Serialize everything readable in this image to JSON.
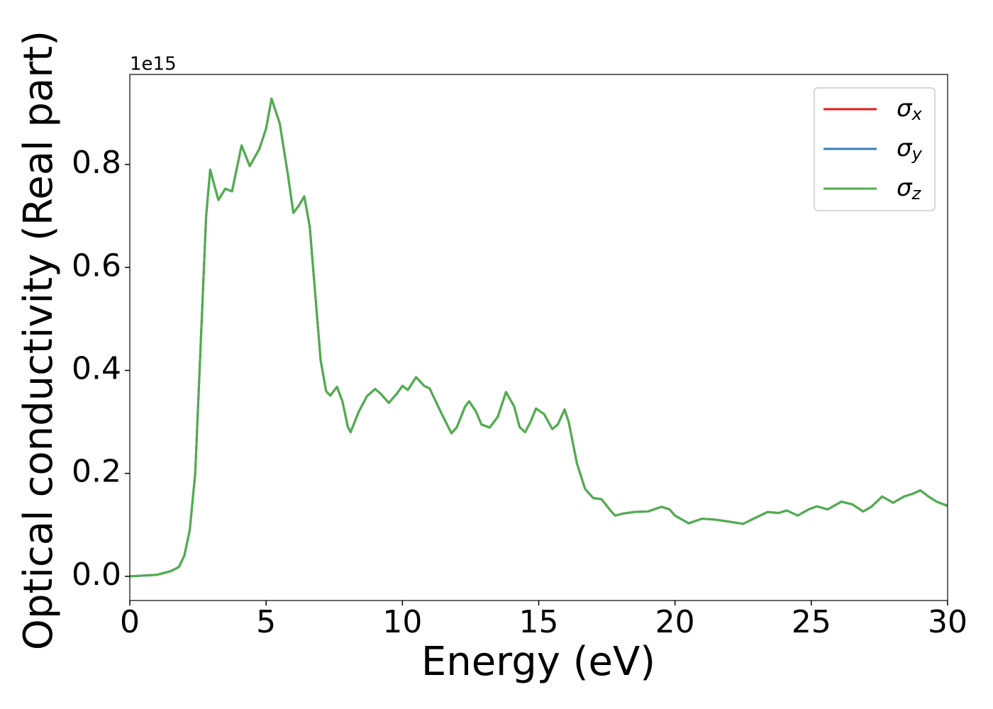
{
  "chart_data": {
    "type": "line",
    "x_label": "Energy (eV)",
    "y_label": "Optical conductivity (Real part)",
    "y_offset_text": "1e15",
    "x": [
      0,
      1,
      1.5,
      1.8,
      2.0,
      2.2,
      2.4,
      2.6,
      2.8,
      2.95,
      3.1,
      3.25,
      3.5,
      3.75,
      4.1,
      4.4,
      4.75,
      5.0,
      5.2,
      5.5,
      5.8,
      6.0,
      6.2,
      6.4,
      6.6,
      6.8,
      7.0,
      7.2,
      7.35,
      7.6,
      7.8,
      8.0,
      8.1,
      8.4,
      8.7,
      9.0,
      9.2,
      9.5,
      9.8,
      10.0,
      10.2,
      10.5,
      10.8,
      11.0,
      11.4,
      11.8,
      12.0,
      12.3,
      12.45,
      12.7,
      12.9,
      13.2,
      13.5,
      13.8,
      14.1,
      14.3,
      14.5,
      14.7,
      14.9,
      15.2,
      15.5,
      15.7,
      15.95,
      16.1,
      16.4,
      16.7,
      17.0,
      17.3,
      17.6,
      17.8,
      18.1,
      18.5,
      19.0,
      19.5,
      19.8,
      20.0,
      20.5,
      21.0,
      21.5,
      22.0,
      22.5,
      23.0,
      23.4,
      23.8,
      24.1,
      24.5,
      24.9,
      25.2,
      25.6,
      26.1,
      26.5,
      26.9,
      27.2,
      27.6,
      28.0,
      28.4,
      28.7,
      29.0,
      29.3,
      29.6,
      30.0
    ],
    "series": [
      {
        "name": "σx",
        "color": "#e41a1c",
        "values": [
          0,
          0.003,
          0.01,
          0.018,
          0.04,
          0.09,
          0.2,
          0.45,
          0.7,
          0.79,
          0.76,
          0.731,
          0.753,
          0.748,
          0.837,
          0.797,
          0.83,
          0.87,
          0.928,
          0.88,
          0.78,
          0.706,
          0.72,
          0.738,
          0.68,
          0.55,
          0.42,
          0.36,
          0.351,
          0.368,
          0.34,
          0.29,
          0.28,
          0.32,
          0.35,
          0.364,
          0.355,
          0.337,
          0.355,
          0.37,
          0.362,
          0.387,
          0.37,
          0.365,
          0.32,
          0.278,
          0.29,
          0.33,
          0.34,
          0.32,
          0.295,
          0.289,
          0.31,
          0.358,
          0.33,
          0.29,
          0.28,
          0.3,
          0.326,
          0.315,
          0.286,
          0.295,
          0.324,
          0.3,
          0.22,
          0.17,
          0.152,
          0.15,
          0.13,
          0.118,
          0.122,
          0.125,
          0.126,
          0.135,
          0.13,
          0.118,
          0.103,
          0.112,
          0.11,
          0.106,
          0.102,
          0.115,
          0.125,
          0.123,
          0.128,
          0.118,
          0.13,
          0.136,
          0.13,
          0.145,
          0.14,
          0.126,
          0.135,
          0.155,
          0.143,
          0.155,
          0.16,
          0.167,
          0.155,
          0.145,
          0.137
        ]
      },
      {
        "name": "σy",
        "color": "#377eb8",
        "values": [
          0,
          0.003,
          0.01,
          0.018,
          0.04,
          0.09,
          0.2,
          0.45,
          0.7,
          0.79,
          0.76,
          0.731,
          0.753,
          0.748,
          0.837,
          0.797,
          0.83,
          0.87,
          0.928,
          0.88,
          0.78,
          0.706,
          0.72,
          0.738,
          0.68,
          0.55,
          0.42,
          0.36,
          0.351,
          0.368,
          0.34,
          0.29,
          0.28,
          0.32,
          0.35,
          0.364,
          0.355,
          0.337,
          0.355,
          0.37,
          0.362,
          0.387,
          0.37,
          0.365,
          0.32,
          0.278,
          0.29,
          0.33,
          0.34,
          0.32,
          0.295,
          0.289,
          0.31,
          0.358,
          0.33,
          0.29,
          0.28,
          0.3,
          0.326,
          0.315,
          0.286,
          0.295,
          0.324,
          0.3,
          0.22,
          0.17,
          0.152,
          0.15,
          0.13,
          0.118,
          0.122,
          0.125,
          0.126,
          0.135,
          0.13,
          0.118,
          0.103,
          0.112,
          0.11,
          0.106,
          0.102,
          0.115,
          0.125,
          0.123,
          0.128,
          0.118,
          0.13,
          0.136,
          0.13,
          0.145,
          0.14,
          0.126,
          0.135,
          0.155,
          0.143,
          0.155,
          0.16,
          0.167,
          0.155,
          0.145,
          0.137
        ]
      },
      {
        "name": "σz",
        "color": "#4daf4a",
        "values": [
          0,
          0.003,
          0.01,
          0.018,
          0.04,
          0.09,
          0.2,
          0.45,
          0.7,
          0.79,
          0.76,
          0.731,
          0.753,
          0.748,
          0.837,
          0.797,
          0.83,
          0.87,
          0.928,
          0.88,
          0.78,
          0.706,
          0.72,
          0.738,
          0.68,
          0.55,
          0.42,
          0.36,
          0.351,
          0.368,
          0.34,
          0.29,
          0.28,
          0.32,
          0.35,
          0.364,
          0.355,
          0.337,
          0.355,
          0.37,
          0.362,
          0.387,
          0.37,
          0.365,
          0.32,
          0.278,
          0.29,
          0.33,
          0.34,
          0.32,
          0.295,
          0.289,
          0.31,
          0.358,
          0.33,
          0.29,
          0.28,
          0.3,
          0.326,
          0.315,
          0.286,
          0.295,
          0.324,
          0.3,
          0.22,
          0.17,
          0.152,
          0.15,
          0.13,
          0.118,
          0.122,
          0.125,
          0.126,
          0.135,
          0.13,
          0.118,
          0.103,
          0.112,
          0.11,
          0.106,
          0.102,
          0.115,
          0.125,
          0.123,
          0.128,
          0.118,
          0.13,
          0.136,
          0.13,
          0.145,
          0.14,
          0.126,
          0.135,
          0.155,
          0.143,
          0.155,
          0.16,
          0.167,
          0.155,
          0.145,
          0.137
        ]
      }
    ],
    "xlim": [
      0,
      30
    ],
    "ylim": [
      -0.047,
      0.975
    ],
    "xticks": [
      0,
      5,
      10,
      15,
      20,
      25,
      30
    ],
    "yticks": [
      {
        "value": 0,
        "label": "0.0"
      },
      0.2,
      0.4,
      0.6,
      0.8
    ],
    "grid": false,
    "legend": "upper right"
  }
}
